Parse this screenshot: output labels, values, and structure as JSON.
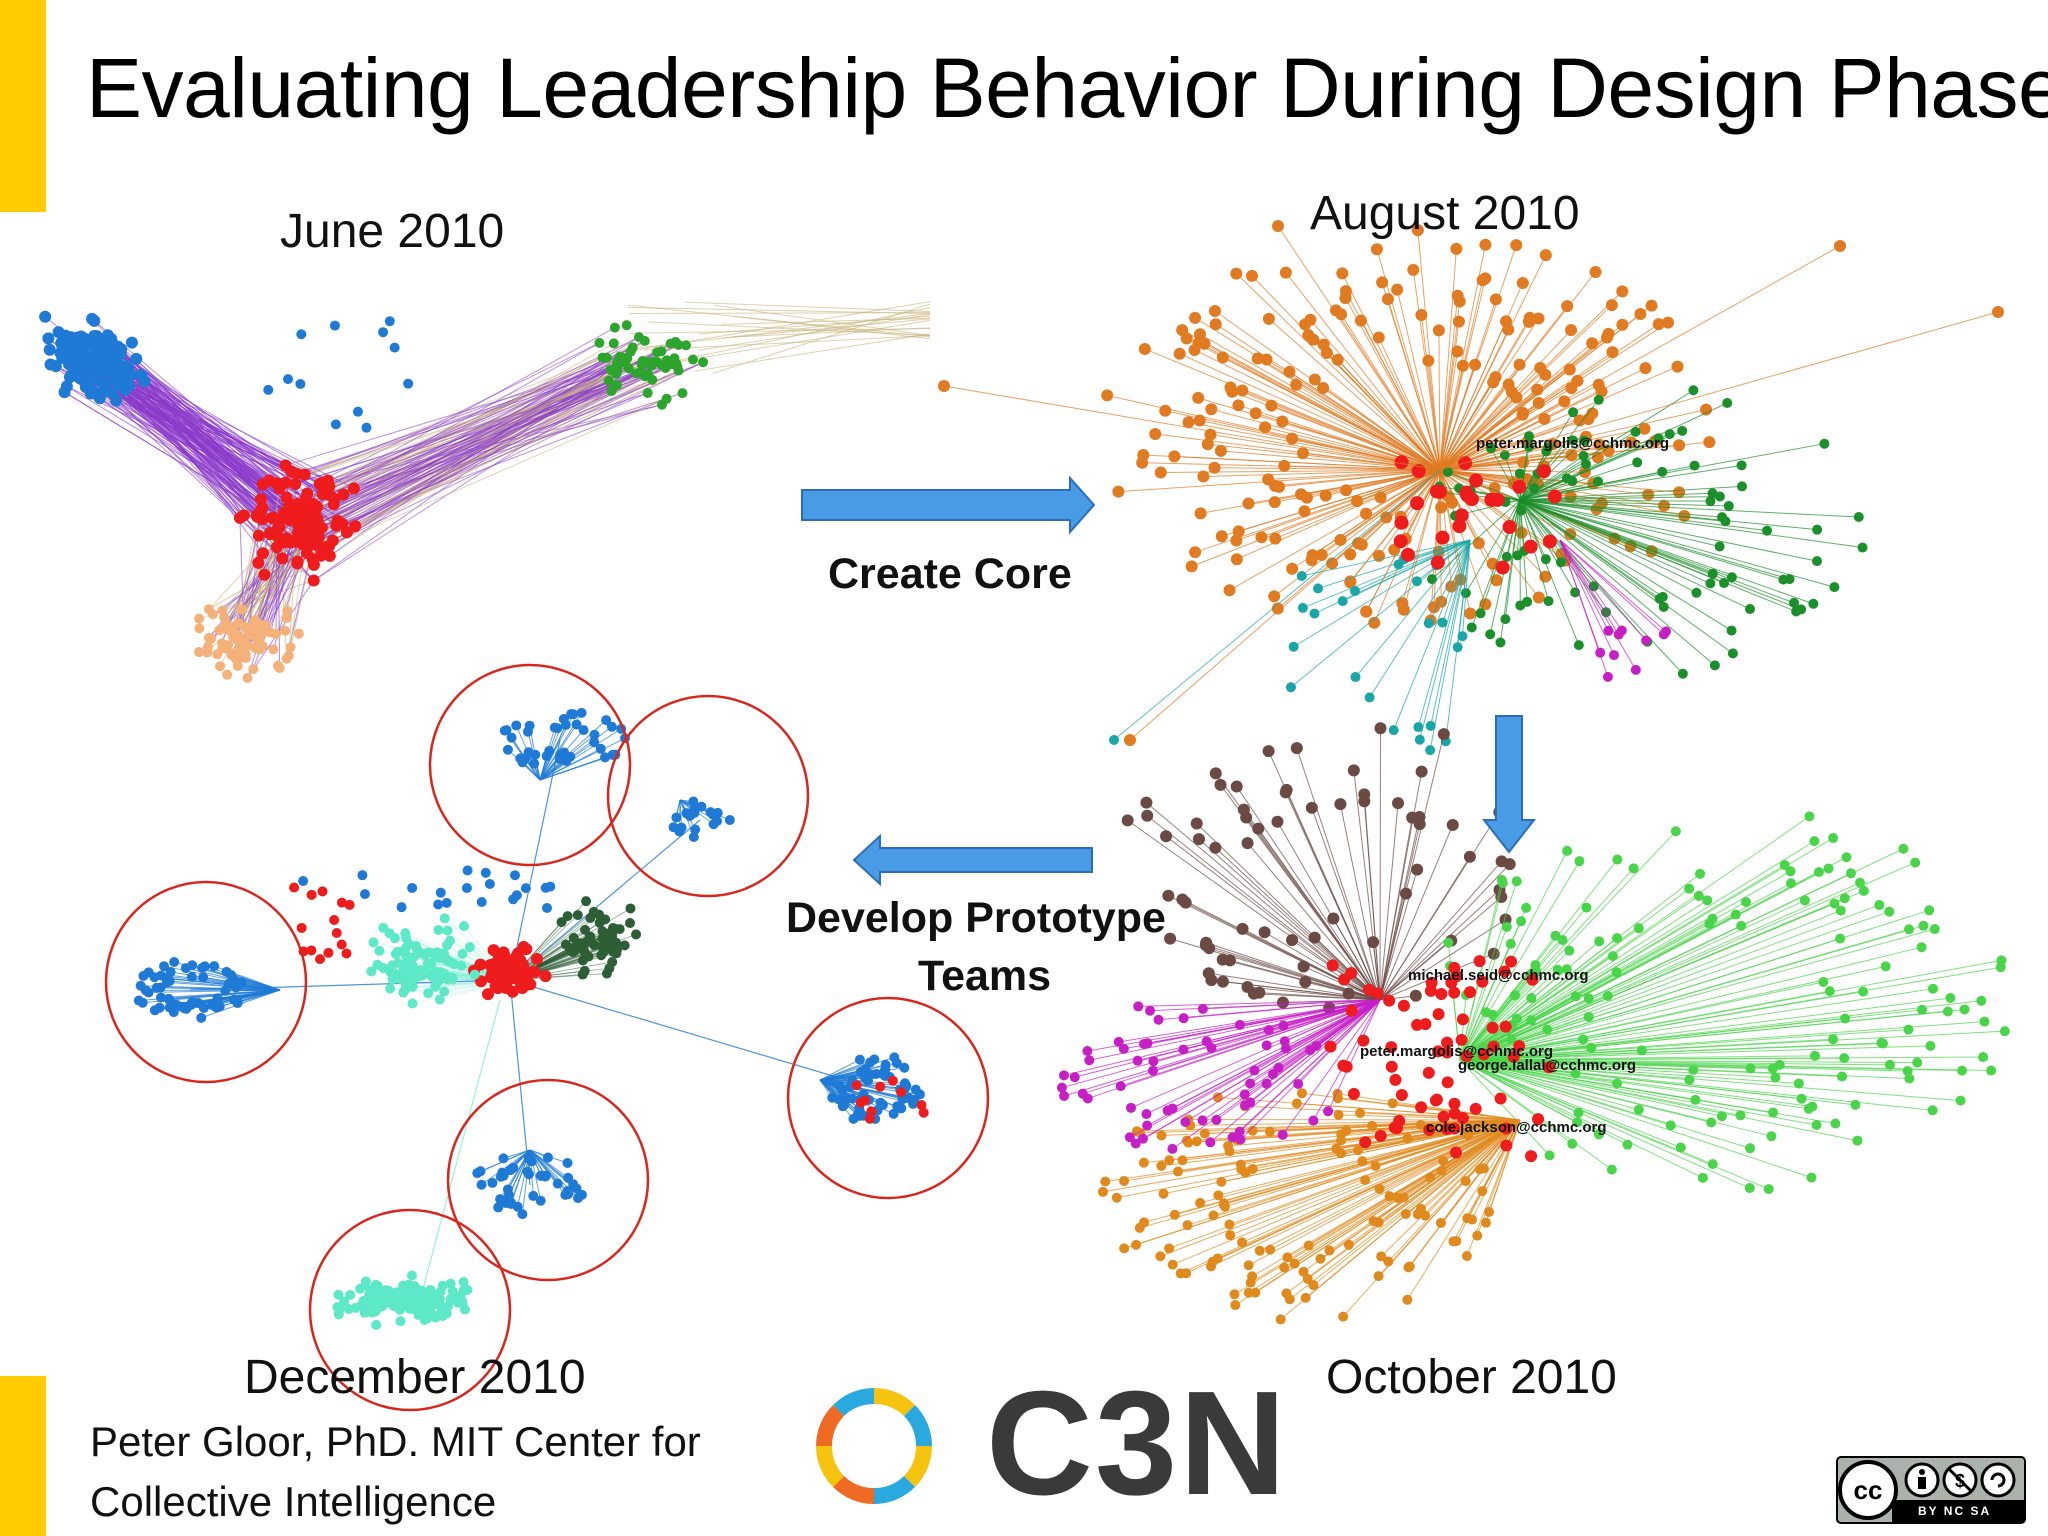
{
  "slide": {
    "title": "Evaluating Leadership Behavior During Design Phase",
    "accent_color": "#ffcc00"
  },
  "panels": {
    "june": {
      "label": "June 2010"
    },
    "august": {
      "label": "August 2010",
      "node_labels": [
        "peter.margolis@cchmc.org"
      ]
    },
    "october": {
      "label": "October 2010",
      "node_labels": [
        "michael.seid@cchmc.org",
        "peter.margolis@cchmc.org",
        "george.lallal@cchmc.org",
        "cole.jackson@cchmc.org"
      ]
    },
    "december": {
      "label": "December 2010"
    }
  },
  "actions": {
    "create_core": "Create Core",
    "develop_line1": "Develop Prototype",
    "develop_line2": "Teams"
  },
  "footer": {
    "line1": "Peter Gloor, PhD.  MIT Center for",
    "line2": "Collective Intelligence",
    "brand": "C3N"
  },
  "license": {
    "text": "BY NC SA",
    "icon": "creative-commons-icon"
  },
  "colors": {
    "arrow": "#4a9be6",
    "circle": "#d9261c",
    "blue": "#1f7ad6",
    "red": "#ee1c1c",
    "green": "#2da52d",
    "orange": "#e07b22",
    "purple": "#8a38c9",
    "teal": "#5de8c8"
  }
}
